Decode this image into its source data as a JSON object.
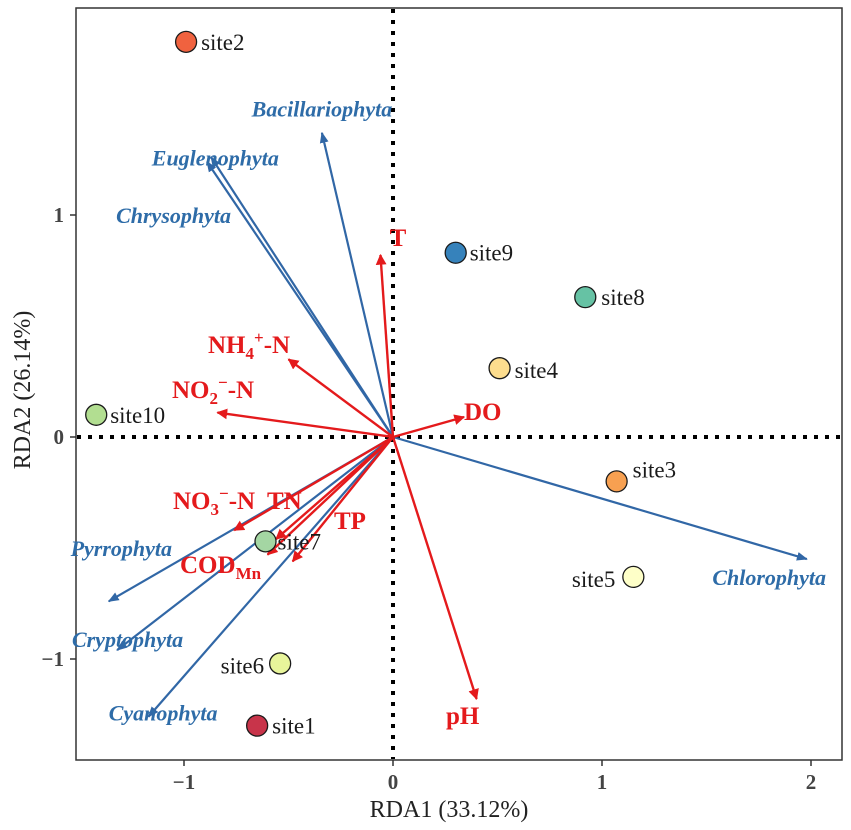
{
  "chart_data": {
    "type": "scatter",
    "subtype": "rda-biplot",
    "xlabel": "RDA1 (33.12%)",
    "ylabel": "RDA2 (26.14%)",
    "xlim": [
      -1.5,
      2.15
    ],
    "ylim": [
      -1.45,
      1.9
    ],
    "xticks": [
      {
        "value": -1,
        "label": "−1"
      },
      {
        "value": 0,
        "label": "0"
      },
      {
        "value": 1,
        "label": "1"
      },
      {
        "value": 2,
        "label": "2"
      }
    ],
    "yticks": [
      {
        "value": -1,
        "label": "−1"
      },
      {
        "value": 0,
        "label": "0"
      },
      {
        "value": 1,
        "label": "1"
      }
    ],
    "zero_lines": true,
    "sites": [
      {
        "name": "site1",
        "x": -0.65,
        "y": -1.3,
        "color": "#C8344A"
      },
      {
        "name": "site2",
        "x": -0.99,
        "y": 1.78,
        "color": "#F0623F"
      },
      {
        "name": "site3",
        "x": 1.07,
        "y": -0.2,
        "color": "#F7A051"
      },
      {
        "name": "site4",
        "x": 0.51,
        "y": 0.31,
        "color": "#FDDD8E"
      },
      {
        "name": "site5",
        "x": 1.15,
        "y": -0.63,
        "color": "#FEFFC8"
      },
      {
        "name": "site6",
        "x": -0.54,
        "y": -1.02,
        "color": "#E8F59B"
      },
      {
        "name": "site7",
        "x": -0.61,
        "y": -0.47,
        "color": "#A4D6A3"
      },
      {
        "name": "site8",
        "x": 0.92,
        "y": 0.63,
        "color": "#66C2A4"
      },
      {
        "name": "site9",
        "x": 0.3,
        "y": 0.83,
        "color": "#3682BB"
      },
      {
        "name": "site10",
        "x": -1.42,
        "y": 0.1,
        "color": "#B2DE91"
      }
    ],
    "species": [
      {
        "name": "Bacillariophyta",
        "x": -0.34,
        "y": 1.37
      },
      {
        "name": "Euglenophyta",
        "x": -0.87,
        "y": 1.26
      },
      {
        "name": "Chrysophyta",
        "x": -0.89,
        "y": 1.24
      },
      {
        "name": "Chlorophyta",
        "x": 1.98,
        "y": -0.55
      },
      {
        "name": "Pyrrophyta",
        "x": -1.36,
        "y": -0.74
      },
      {
        "name": "Cryptophyta",
        "x": -1.32,
        "y": -0.96
      },
      {
        "name": "Cyanophyta",
        "x": -1.17,
        "y": -1.26
      }
    ],
    "environment": [
      {
        "name": "T",
        "label": "T",
        "sub": "",
        "sup": "",
        "tail": "",
        "x": -0.06,
        "y": 0.82
      },
      {
        "name": "NH4+-N",
        "label": "NH",
        "sub": "4",
        "sup": "+",
        "tail": "-N",
        "x": -0.5,
        "y": 0.35
      },
      {
        "name": "NO2--N",
        "label": "NO",
        "sub": "2",
        "sup": "−",
        "tail": "-N",
        "x": -0.84,
        "y": 0.11
      },
      {
        "name": "DO",
        "label": "DO",
        "sub": "",
        "sup": "",
        "tail": "",
        "x": 0.34,
        "y": 0.09
      },
      {
        "name": "NO3--N",
        "label": "NO",
        "sub": "3",
        "sup": "−",
        "tail": "-N",
        "x": -0.76,
        "y": -0.42
      },
      {
        "name": "TN",
        "label": "TN",
        "sub": "",
        "sup": "",
        "tail": "",
        "x": -0.56,
        "y": -0.46
      },
      {
        "name": "TP",
        "label": "TP",
        "sub": "",
        "sup": "",
        "tail": "",
        "x": -0.48,
        "y": -0.56
      },
      {
        "name": "CODMn",
        "label": "COD",
        "sub": "Mn",
        "sup": "",
        "tail": "",
        "x": -0.6,
        "y": -0.53
      },
      {
        "name": "pH",
        "label": "pH",
        "sub": "",
        "sup": "",
        "tail": "",
        "x": 0.4,
        "y": -1.18
      }
    ],
    "colors": {
      "species_arrow": "#3167A6",
      "species_text": "#2E6CA8",
      "env": "#E41A1C",
      "frame": "#333333"
    }
  }
}
